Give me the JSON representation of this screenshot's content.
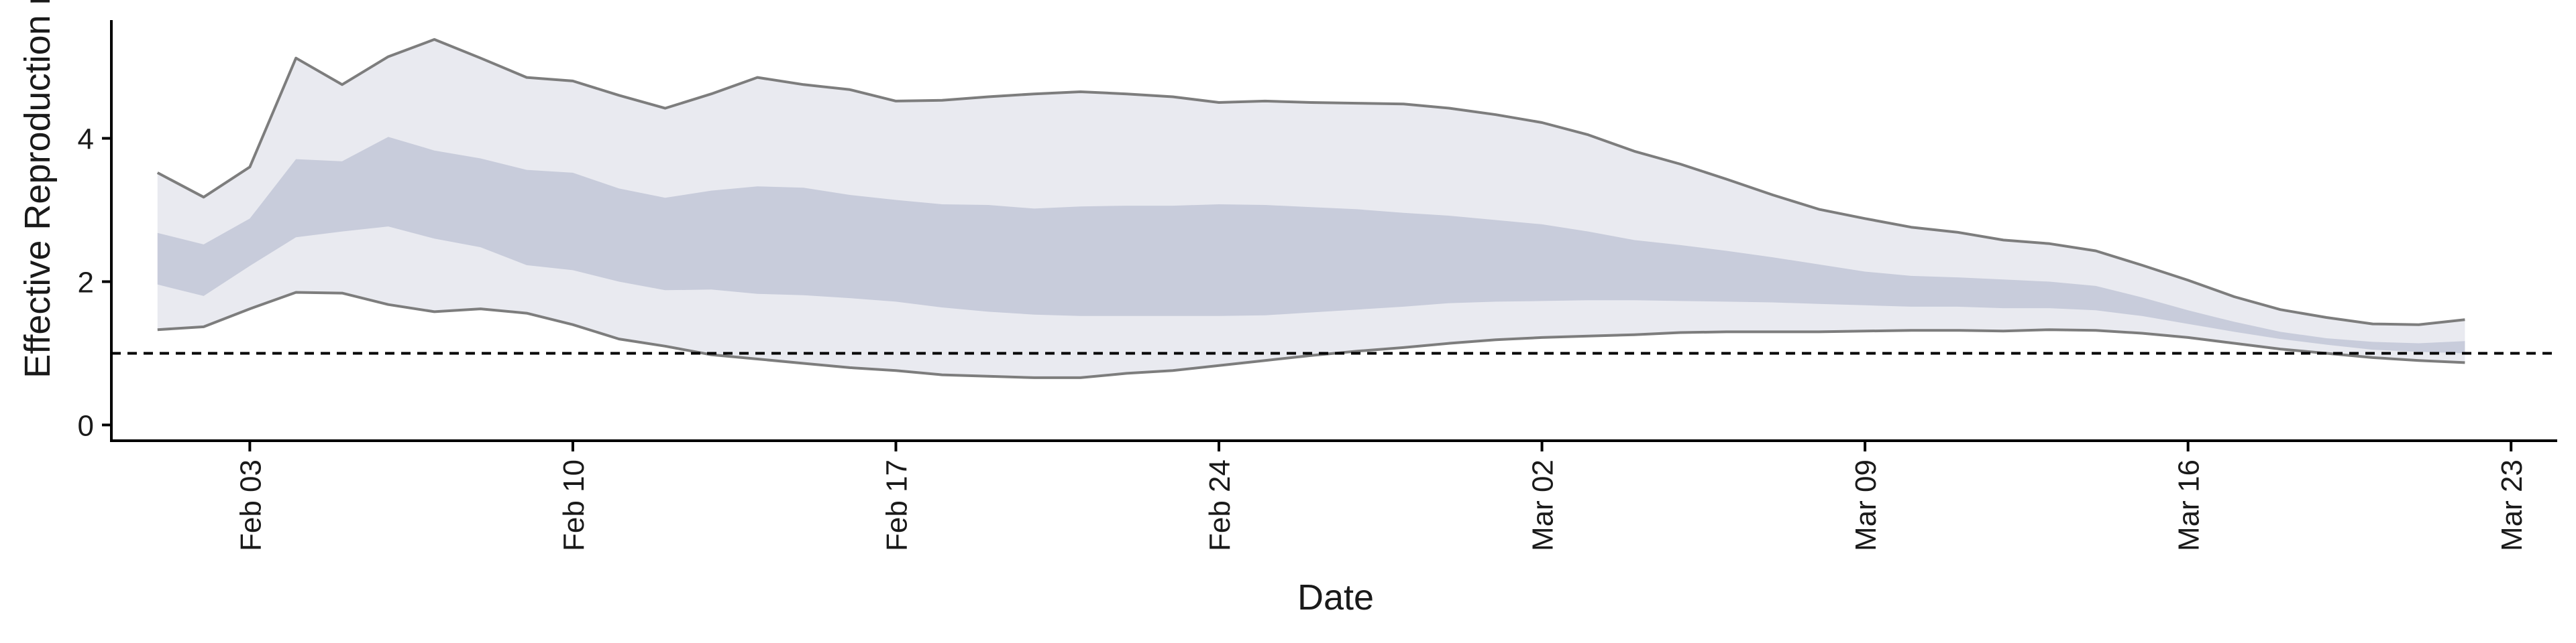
{
  "chart_data": {
    "type": "area",
    "xlabel": "Date",
    "ylabel": "Effective Reproduction no",
    "x_tick_labels": [
      "Feb 03",
      "Feb 10",
      "Feb 17",
      "Feb 24",
      "Mar 02",
      "Mar 09",
      "Mar 16",
      "Mar 23"
    ],
    "x_tick_dates": [
      "2020-02-03",
      "2020-02-10",
      "2020-02-17",
      "2020-02-24",
      "2020-03-02",
      "2020-03-09",
      "2020-03-16",
      "2020-03-23"
    ],
    "xlim": [
      "2020-01-31",
      "2020-03-24"
    ],
    "y_ticks": [
      0,
      2,
      4
    ],
    "ylim": [
      -0.22,
      5.65
    ],
    "reference_line": {
      "y": 1,
      "style": "dashed"
    },
    "x": [
      "2020-02-01",
      "2020-02-02",
      "2020-02-03",
      "2020-02-04",
      "2020-02-05",
      "2020-02-06",
      "2020-02-07",
      "2020-02-08",
      "2020-02-09",
      "2020-02-10",
      "2020-02-11",
      "2020-02-12",
      "2020-02-13",
      "2020-02-14",
      "2020-02-15",
      "2020-02-16",
      "2020-02-17",
      "2020-02-18",
      "2020-02-19",
      "2020-02-20",
      "2020-02-21",
      "2020-02-22",
      "2020-02-23",
      "2020-02-24",
      "2020-02-25",
      "2020-02-26",
      "2020-02-27",
      "2020-02-28",
      "2020-02-29",
      "2020-03-01",
      "2020-03-02",
      "2020-03-03",
      "2020-03-04",
      "2020-03-05",
      "2020-03-06",
      "2020-03-07",
      "2020-03-08",
      "2020-03-09",
      "2020-03-10",
      "2020-03-11",
      "2020-03-12",
      "2020-03-13",
      "2020-03-14",
      "2020-03-15",
      "2020-03-16",
      "2020-03-17",
      "2020-03-18",
      "2020-03-19",
      "2020-03-20",
      "2020-03-21",
      "2020-03-22"
    ],
    "series": [
      {
        "type": "band",
        "lower": [
          1.33,
          1.37,
          1.62,
          1.85,
          1.84,
          1.68,
          1.58,
          1.62,
          1.56,
          1.4,
          1.2,
          1.1,
          0.98,
          0.92,
          0.86,
          0.8,
          0.76,
          0.7,
          0.68,
          0.66,
          0.66,
          0.72,
          0.76,
          0.83,
          0.9,
          0.97,
          1.03,
          1.08,
          1.14,
          1.19,
          1.22,
          1.24,
          1.26,
          1.29,
          1.3,
          1.3,
          1.3,
          1.31,
          1.32,
          1.32,
          1.31,
          1.33,
          1.32,
          1.28,
          1.22,
          1.14,
          1.06,
          1.0,
          0.94,
          0.9,
          0.87
        ],
        "upper": [
          3.52,
          3.18,
          3.6,
          5.12,
          4.75,
          5.14,
          5.38,
          5.12,
          4.85,
          4.8,
          4.6,
          4.42,
          4.62,
          4.85,
          4.75,
          4.68,
          4.52,
          4.53,
          4.58,
          4.62,
          4.65,
          4.62,
          4.58,
          4.5,
          4.52,
          4.5,
          4.49,
          4.48,
          4.42,
          4.33,
          4.22,
          4.05,
          3.82,
          3.64,
          3.43,
          3.21,
          3.01,
          2.88,
          2.76,
          2.69,
          2.58,
          2.53,
          2.43,
          2.23,
          2.02,
          1.79,
          1.61,
          1.5,
          1.41,
          1.4,
          1.47
        ],
        "color": "#e9eaf0"
      },
      {
        "type": "band",
        "lower": [
          1.96,
          1.8,
          2.22,
          2.62,
          2.7,
          2.77,
          2.6,
          2.48,
          2.23,
          2.16,
          2.0,
          1.88,
          1.89,
          1.83,
          1.81,
          1.77,
          1.72,
          1.64,
          1.58,
          1.54,
          1.52,
          1.52,
          1.52,
          1.52,
          1.53,
          1.57,
          1.61,
          1.65,
          1.7,
          1.72,
          1.73,
          1.74,
          1.74,
          1.73,
          1.72,
          1.71,
          1.69,
          1.67,
          1.65,
          1.65,
          1.63,
          1.63,
          1.6,
          1.52,
          1.41,
          1.3,
          1.2,
          1.12,
          1.05,
          1.02,
          1.0
        ],
        "upper": [
          2.68,
          2.52,
          2.88,
          3.71,
          3.68,
          4.02,
          3.83,
          3.72,
          3.56,
          3.52,
          3.3,
          3.17,
          3.27,
          3.33,
          3.31,
          3.21,
          3.14,
          3.08,
          3.07,
          3.02,
          3.05,
          3.06,
          3.06,
          3.08,
          3.07,
          3.04,
          3.01,
          2.96,
          2.92,
          2.86,
          2.8,
          2.7,
          2.58,
          2.51,
          2.43,
          2.34,
          2.24,
          2.14,
          2.08,
          2.06,
          2.03,
          2.0,
          1.94,
          1.78,
          1.6,
          1.44,
          1.3,
          1.21,
          1.16,
          1.14,
          1.17
        ],
        "color": "#c8ccdb"
      }
    ]
  }
}
